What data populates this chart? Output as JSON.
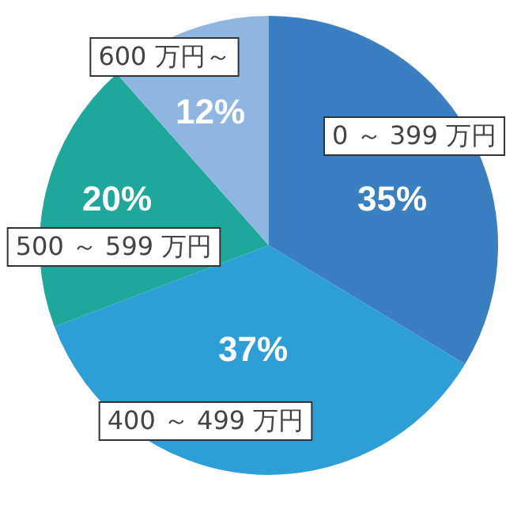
{
  "chart_data": {
    "type": "pie",
    "categories": [
      "0 ～ 399 万円",
      "400 ～ 499 万円",
      "500 ～ 599 万円",
      "600 万円～"
    ],
    "values": [
      35,
      37,
      20,
      12
    ],
    "value_labels": [
      "35%",
      "37%",
      "20%",
      "12%"
    ],
    "colors": [
      "#3a7fc1",
      "#2e9fd6",
      "#1ea89c",
      "#8fb6e0"
    ]
  }
}
